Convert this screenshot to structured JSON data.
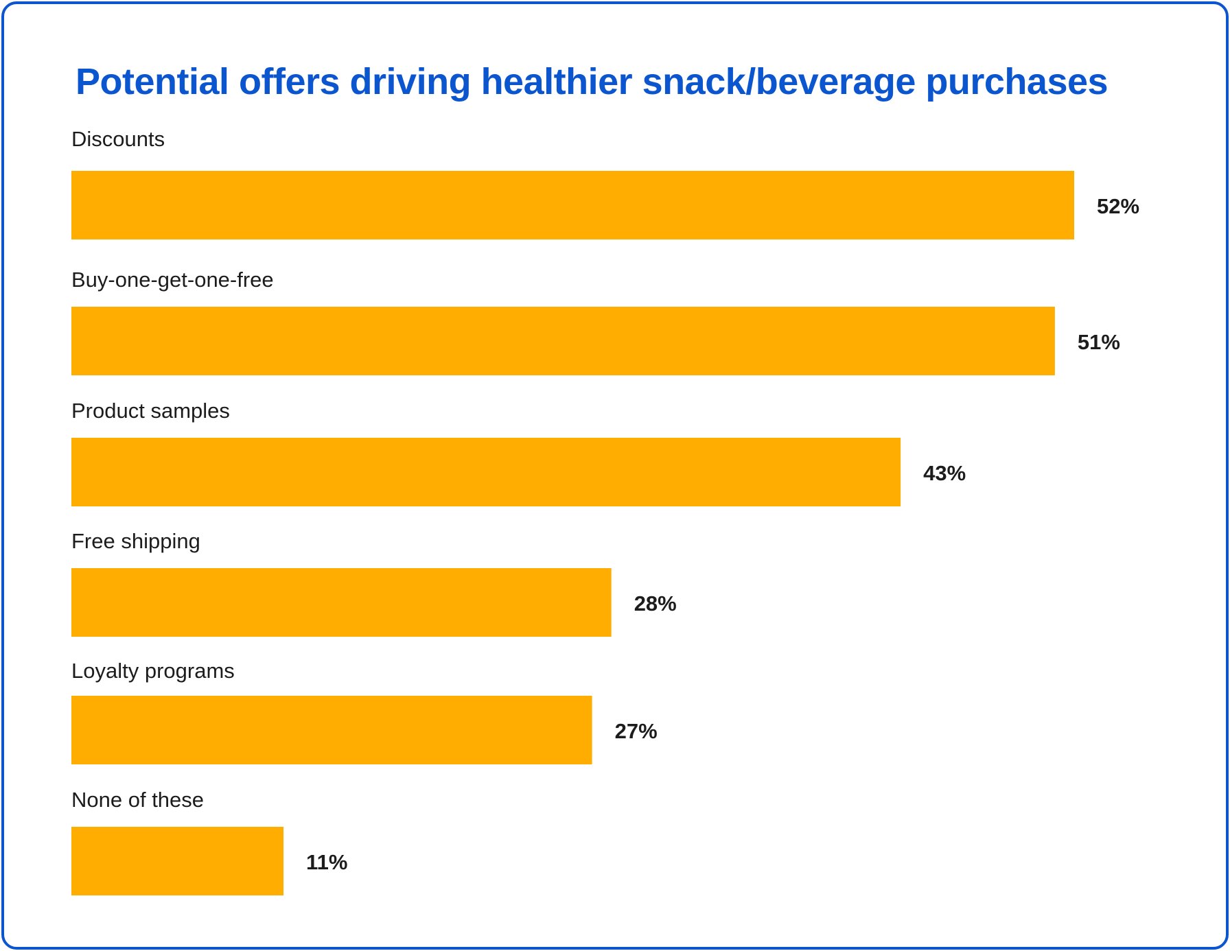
{
  "chart_data": {
    "type": "bar",
    "orientation": "horizontal",
    "title": "Potential offers driving healthier snack/beverage purchases",
    "categories": [
      "Discounts",
      "Buy-one-get-one-free",
      "Product samples",
      "Free shipping",
      "Loyalty programs",
      "None of these"
    ],
    "values": [
      52,
      51,
      43,
      28,
      27,
      11
    ],
    "value_labels": [
      "52%",
      "51%",
      "43%",
      "28%",
      "27%",
      "11%"
    ],
    "unit": "%",
    "bar_color": "#ffad00",
    "title_color": "#0b55cf",
    "grid": false,
    "legend": "none"
  }
}
